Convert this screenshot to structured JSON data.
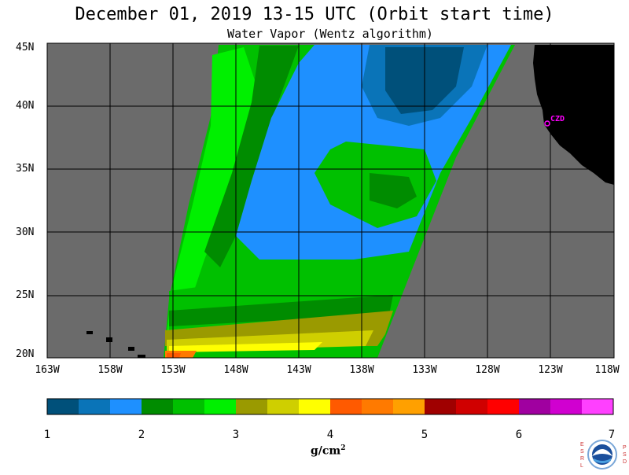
{
  "title": "December 01, 2019  13-15 UTC  (Orbit start time)",
  "subtitle": "Water Vapor (Wentz algorithm)",
  "map": {
    "lat_labels": [
      "45N",
      "40N",
      "35N",
      "30N",
      "25N",
      "20N"
    ],
    "lon_labels": [
      "163W",
      "158W",
      "153W",
      "148W",
      "143W",
      "138W",
      "133W",
      "128W",
      "123W",
      "118W"
    ],
    "station_label": "CZD",
    "colors": {
      "ocean_nodata": "#6b6b6b",
      "land": "#000000",
      "grid": "#000000",
      "station": "#ff00ff"
    }
  },
  "colorbar": {
    "ticks": [
      "1",
      "2",
      "3",
      "4",
      "5",
      "6",
      "7"
    ],
    "units": "g/cm",
    "units_sup": "2",
    "colors": [
      "#00507a",
      "#0a74b8",
      "#1e90ff",
      "#008c00",
      "#00c000",
      "#00f000",
      "#9a9a00",
      "#cfcf00",
      "#ffff00",
      "#ff5a00",
      "#ff7a00",
      "#ffa000",
      "#a00000",
      "#d00000",
      "#ff0000",
      "#a000a0",
      "#d000d0",
      "#ff40ff"
    ]
  },
  "logo": {
    "left_letters": [
      "E",
      "S",
      "R",
      "L"
    ],
    "right_letters": [
      "P",
      "S",
      "D"
    ],
    "name": "NOAA"
  }
}
